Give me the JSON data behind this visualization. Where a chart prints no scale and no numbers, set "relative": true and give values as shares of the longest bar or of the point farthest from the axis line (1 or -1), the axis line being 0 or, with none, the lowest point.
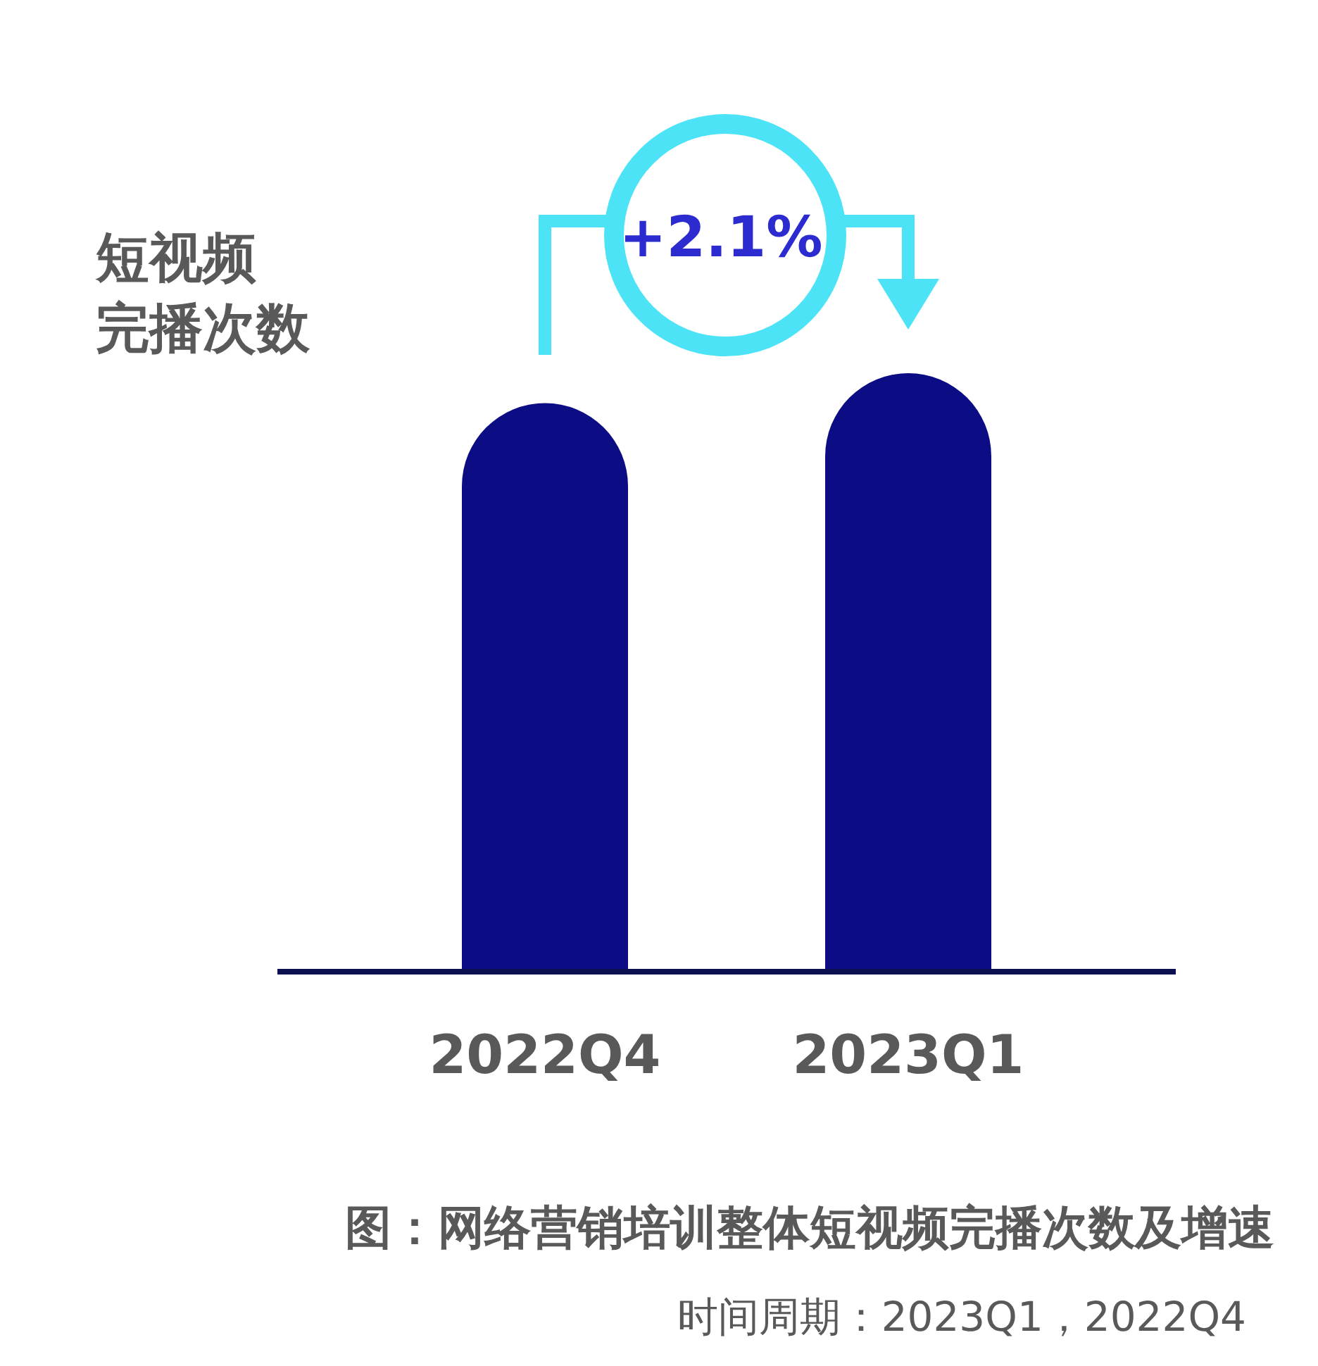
{
  "chart_data": {
    "type": "bar",
    "relative": true,
    "categories": [
      "2022Q4",
      "2023Q1"
    ],
    "values": [
      0.95,
      1
    ],
    "color": "#0c0c85",
    "ylabel": "短视频完播次数",
    "annotations": [
      "+2.1%",
      "图：网络营销培训整体短视频完播次数及增速",
      "时间周期：2023Q1，2022Q4"
    ]
  }
}
